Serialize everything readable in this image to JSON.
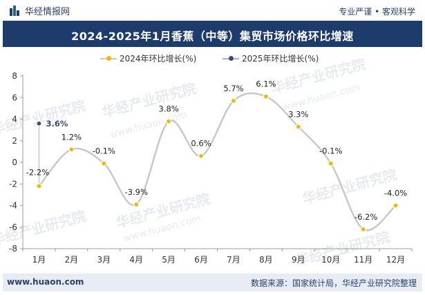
{
  "header": {
    "brand": "华经情报网",
    "tagline": "专业严谨 • 客观科学"
  },
  "title": "2024-2025年1月香蕉（中等）集贸市场价格环比增速",
  "watermark": {
    "text": "华经产业研究院",
    "url": "www.huaon.com"
  },
  "footer": {
    "website": "www.huaon.com",
    "source": "数据来源：国家统计局，华经产业研究院整理"
  },
  "chart_data": {
    "type": "line",
    "title": "2024-2025年1月香蕉（中等）集贸市场价格环比增速",
    "categories": [
      "1月",
      "2月",
      "3月",
      "4月",
      "5月",
      "6月",
      "7月",
      "8月",
      "9月",
      "10月",
      "11月",
      "12月"
    ],
    "ylim": [
      -8,
      8
    ],
    "yticks": [
      -8,
      -6,
      -4,
      -2,
      0,
      2,
      4,
      6,
      8
    ],
    "legend_position": "top",
    "series": [
      {
        "name": "2024年环比增长(%)",
        "color": "#c8c8c8",
        "marker_color": "#f5b800",
        "values": [
          -2.2,
          1.2,
          -0.1,
          -3.9,
          3.8,
          0.6,
          5.7,
          6.1,
          3.3,
          -0.1,
          -6.2,
          -4.0
        ],
        "labels": [
          "-2.2%",
          "1.2%",
          "-0.1%",
          "-3.9%",
          "3.8%",
          "0.6%",
          "5.7%",
          "6.1%",
          "3.3%",
          "-0.1%",
          "-6.2%",
          "-4.0%"
        ]
      },
      {
        "name": "2025年环比增长(%)",
        "color": "#a7b3ca",
        "marker_color": "#3a4d7a",
        "values": [
          3.6,
          null,
          null,
          null,
          null,
          null,
          null,
          null,
          null,
          null,
          null,
          null
        ],
        "labels": [
          "3.6%",
          "",
          "",
          "",
          "",
          "",
          "",
          "",
          "",
          "",
          "",
          ""
        ]
      }
    ]
  }
}
